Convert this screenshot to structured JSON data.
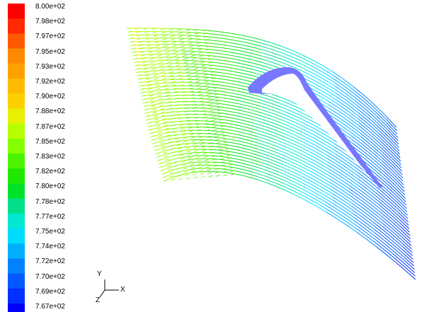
{
  "colorbar": {
    "labels": [
      "8.00e+02",
      "7.98e+02",
      "7.97e+02",
      "7.95e+02",
      "7.93e+02",
      "7.92e+02",
      "7.90e+02",
      "7.88e+02",
      "7.87e+02",
      "7.85e+02",
      "7.83e+02",
      "7.82e+02",
      "7.80e+02",
      "7.78e+02",
      "7.77e+02",
      "7.75e+02",
      "7.74e+02",
      "7.72e+02",
      "7.70e+02",
      "7.69e+02",
      "7.67e+02"
    ],
    "colors": [
      "#ff0000",
      "#ff2a00",
      "#ff5a00",
      "#ff8a00",
      "#ffa200",
      "#ffbb00",
      "#ffd000",
      "#e8ef00",
      "#b6ff00",
      "#86ff00",
      "#4cf200",
      "#1ee800",
      "#00e22a",
      "#00e08a",
      "#00e8cf",
      "#00dcff",
      "#00b0ff",
      "#0082ff",
      "#005aff",
      "#0030ff",
      "#0000ff"
    ]
  },
  "geometry": {
    "blade_color": "#7777ff"
  },
  "triad": {
    "y_label": "Y",
    "x_label": "X",
    "z_label": "Z"
  }
}
